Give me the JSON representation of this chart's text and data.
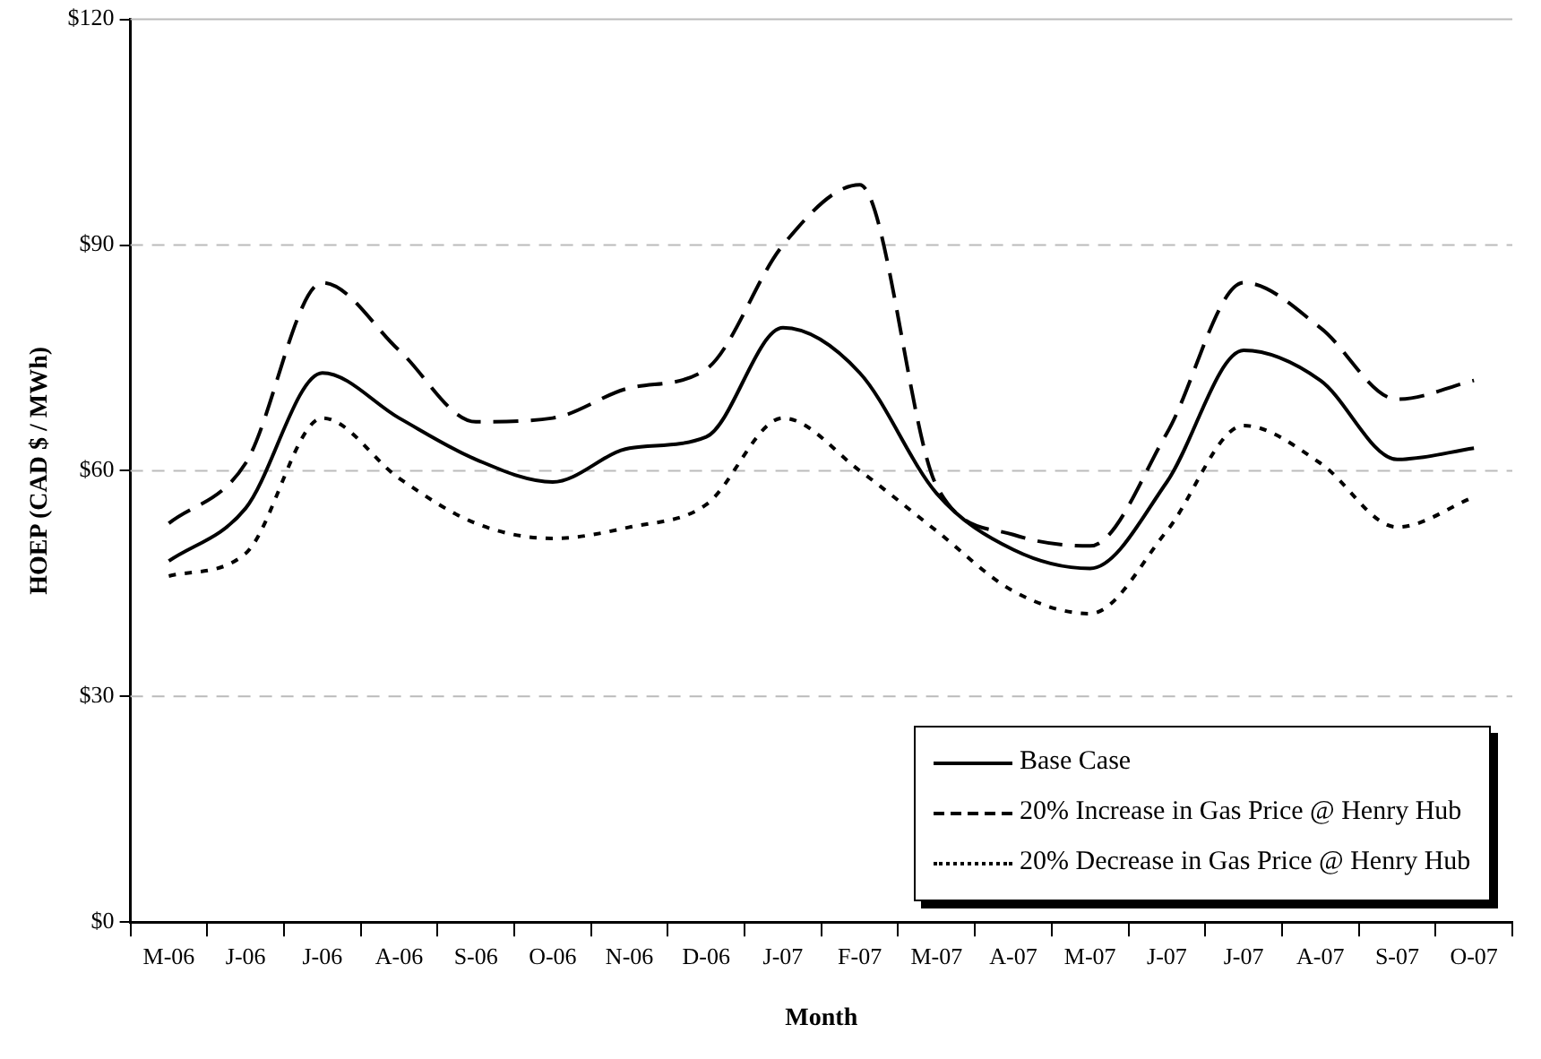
{
  "chart_data": {
    "type": "line",
    "xlabel": "Month",
    "ylabel": "HOEP (CAD $ / MWh)",
    "categories": [
      "M-06",
      "J-06",
      "J-06",
      "A-06",
      "S-06",
      "O-06",
      "N-06",
      "D-06",
      "J-07",
      "F-07",
      "M-07",
      "A-07",
      "M-07",
      "J-07",
      "J-07",
      "A-07",
      "S-07",
      "O-07"
    ],
    "series": [
      {
        "name": "Base Case",
        "color": "#000000",
        "line_style": "solid",
        "values": [
          48,
          55,
          73,
          67,
          61.5,
          58.5,
          63,
          64.5,
          79,
          73,
          57,
          49.5,
          47,
          58.5,
          76,
          72,
          61.5,
          63
        ]
      },
      {
        "name": "20% Increase in Gas Price @ Henry Hub",
        "color": "#000000",
        "line_style": "dashed",
        "values": [
          53,
          61,
          85,
          76,
          66.5,
          67,
          71,
          73.5,
          90,
          98,
          58,
          51.5,
          50,
          65,
          85,
          79,
          69.5,
          72
        ]
      },
      {
        "name": "20% Decrease in Gas Price @ Henry Hub",
        "color": "#000000",
        "line_style": "dotted",
        "values": [
          46,
          49,
          67,
          59,
          53,
          51,
          52.5,
          55.5,
          67,
          60,
          52,
          44,
          41,
          52,
          66,
          61,
          52.5,
          56.5
        ]
      }
    ],
    "ylim": [
      0,
      120
    ],
    "yticks": [
      {
        "value": 0,
        "label": "$0"
      },
      {
        "value": 30,
        "label": "$30"
      },
      {
        "value": 60,
        "label": "$60"
      },
      {
        "value": 90,
        "label": "$90"
      },
      {
        "value": 120,
        "label": "$120"
      }
    ],
    "grid": "y",
    "legend": "bottom right",
    "marker": "none"
  }
}
